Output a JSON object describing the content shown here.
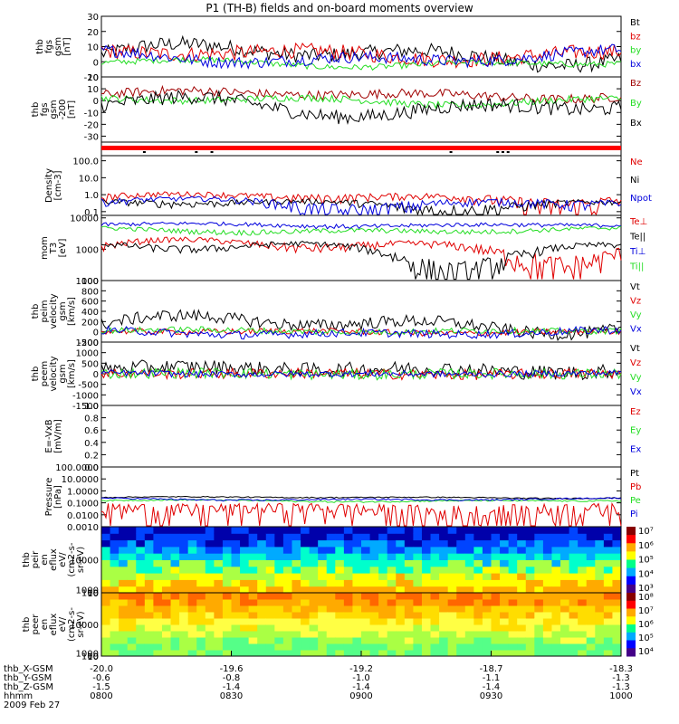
{
  "title": "P1 (TH-B) fields and on-board moments overview",
  "colors": {
    "black": "#000000",
    "red": "#e00000",
    "darkred": "#a00000",
    "green": "#22dd22",
    "blue": "#0000dd",
    "frame": "#000000"
  },
  "ephemeris": {
    "rows": [
      {
        "label": "thb_X-GSM",
        "values": [
          "-20.0",
          "-19.6",
          "-19.2",
          "-18.7",
          "-18.3"
        ]
      },
      {
        "label": "thb_Y-GSM",
        "values": [
          "-0.6",
          "-0.8",
          "-1.0",
          "-1.1",
          "-1.3"
        ]
      },
      {
        "label": "thb_Z-GSM",
        "values": [
          "-1.5",
          "-1.4",
          "-1.4",
          "-1.4",
          "-1.3"
        ]
      },
      {
        "label": "hhmm",
        "values": [
          "0800",
          "0830",
          "0900",
          "0930",
          "1000"
        ]
      }
    ],
    "date": "2009 Feb 27"
  },
  "chart_data": [
    {
      "type": "line",
      "ylabel": [
        "thb",
        "fgs",
        "gsm",
        "[nT]"
      ],
      "ylim": [
        -10,
        30
      ],
      "ticks": [
        -10,
        0,
        10,
        20,
        30
      ],
      "tick_labels": [
        "-10",
        "0",
        "10",
        "20",
        "30"
      ],
      "series": [
        {
          "name": "Bt",
          "color": "black",
          "base": 5,
          "amp": 8,
          "noise": 5
        },
        {
          "name": "bz",
          "color": "red",
          "base": 5,
          "amp": 4,
          "noise": 5
        },
        {
          "name": "by",
          "color": "green",
          "base": -1,
          "amp": 3,
          "noise": 2
        },
        {
          "name": "bx",
          "color": "blue",
          "base": 3,
          "amp": 5,
          "noise": 4
        }
      ]
    },
    {
      "type": "line",
      "ylabel": [
        "thb",
        "fgs",
        "gsm",
        "-200",
        "[nT]"
      ],
      "ylim": [
        -35,
        20
      ],
      "ticks": [
        -30,
        -20,
        -10,
        0,
        10,
        20
      ],
      "tick_labels": [
        "-30",
        "-20",
        "-10",
        "0",
        "10",
        "20"
      ],
      "series": [
        {
          "name": "Bz",
          "color": "darkred",
          "base": 5,
          "amp": 4,
          "noise": 4
        },
        {
          "name": "By",
          "color": "green",
          "base": 0,
          "amp": 4,
          "noise": 3
        },
        {
          "name": "Bx",
          "color": "black",
          "base": -5,
          "amp": 10,
          "noise": 6
        }
      ]
    },
    {
      "type": "flags",
      "ylabel": []
    },
    {
      "type": "line",
      "log": true,
      "ylabel": [
        "Density",
        "[cm-3]"
      ],
      "ylim": [
        0.06,
        200
      ],
      "ticks": [
        0.1,
        1,
        10,
        100
      ],
      "tick_labels": [
        "0.1",
        "1.0",
        "10.0",
        "100.0"
      ],
      "series": [
        {
          "name": "Ne",
          "color": "red",
          "base": 0.7,
          "amp": 0.5,
          "noise": 0.4
        },
        {
          "name": "Ni",
          "color": "black",
          "base": 0.3,
          "amp": 0.2,
          "noise": 0.15
        },
        {
          "name": "Npot",
          "color": "blue",
          "base": 0.35,
          "amp": 0.3,
          "noise": 0.2
        }
      ]
    },
    {
      "type": "line",
      "log": true,
      "ylabel": [
        "mom",
        "T3",
        "[eV]"
      ],
      "ylim": [
        100,
        12000
      ],
      "ticks": [
        100,
        1000,
        10000
      ],
      "tick_labels": [
        "100",
        "1000",
        "10000"
      ],
      "series": [
        {
          "name": "Te⊥",
          "color": "red",
          "base": 1200,
          "amp": 1000,
          "noise": 400
        },
        {
          "name": "Te||",
          "color": "black",
          "base": 1000,
          "amp": 900,
          "noise": 300
        },
        {
          "name": "Ti⊥",
          "color": "blue",
          "base": 6000,
          "amp": 800,
          "noise": 900
        },
        {
          "name": "Ti||",
          "color": "green",
          "base": 4000,
          "amp": 800,
          "noise": 700
        }
      ]
    },
    {
      "type": "line",
      "ylabel": [
        "thb",
        "peim",
        "velocity",
        "gsm",
        "[km/s]"
      ],
      "ylim": [
        -200,
        1000
      ],
      "ticks": [
        -200,
        0,
        200,
        400,
        600,
        800,
        1000
      ],
      "tick_labels": [
        "-200",
        "0",
        "200",
        "400",
        "600",
        "800",
        "1000"
      ],
      "series": [
        {
          "name": "Vt",
          "color": "black",
          "base": 150,
          "amp": 200,
          "noise": 120
        },
        {
          "name": "Vz",
          "color": "red",
          "base": 0,
          "amp": 30,
          "noise": 60
        },
        {
          "name": "Vy",
          "color": "green",
          "base": 20,
          "amp": 30,
          "noise": 60
        },
        {
          "name": "Vx",
          "color": "blue",
          "base": -20,
          "amp": 60,
          "noise": 80
        }
      ]
    },
    {
      "type": "line",
      "ylabel": [
        "thb",
        "peem",
        "velocity",
        "gsm",
        "[km/s]"
      ],
      "ylim": [
        -1500,
        1500
      ],
      "ticks": [
        -1500,
        -1000,
        -500,
        0,
        500,
        1000,
        1500
      ],
      "tick_labels": [
        "-1500",
        "-1000",
        "-500",
        "0",
        "500",
        "1000",
        "1500"
      ],
      "series": [
        {
          "name": "Vt",
          "color": "black",
          "base": 200,
          "amp": 150,
          "noise": 350
        },
        {
          "name": "Vz",
          "color": "red",
          "base": 0,
          "amp": 50,
          "noise": 250
        },
        {
          "name": "Vy",
          "color": "green",
          "base": 0,
          "amp": 50,
          "noise": 250
        },
        {
          "name": "Vx",
          "color": "blue",
          "base": 0,
          "amp": 40,
          "noise": 150
        }
      ]
    },
    {
      "type": "line",
      "ylabel": [
        "E=-VxB",
        "[mV/m]"
      ],
      "ylim": [
        0,
        1
      ],
      "ticks": [
        0,
        0.2,
        0.4,
        0.6,
        0.8,
        1
      ],
      "tick_labels": [
        "0.0",
        "0.2",
        "0.4",
        "0.6",
        "0.8",
        "1.0"
      ],
      "series": [
        {
          "name": "Ez",
          "color": "red",
          "empty": true
        },
        {
          "name": "Ey",
          "color": "green",
          "empty": true
        },
        {
          "name": "Ex",
          "color": "blue",
          "empty": true
        }
      ]
    },
    {
      "type": "line",
      "log": true,
      "ylabel": [
        "Pressure",
        "[nPa]"
      ],
      "ylim": [
        0.001,
        100
      ],
      "ticks": [
        0.001,
        0.01,
        0.1,
        1,
        10,
        100
      ],
      "tick_labels": [
        "0.0010",
        "0.0100",
        "0.1000",
        "1.0000",
        "10.0000",
        "100.0000"
      ],
      "series": [
        {
          "name": "Pt",
          "color": "black",
          "base": 0.28,
          "amp": 0.05,
          "noise": 0.03
        },
        {
          "name": "Pb",
          "color": "red",
          "base": 0.03,
          "amp": 0.02,
          "noise": 0.05
        },
        {
          "name": "Pe",
          "color": "green",
          "base": 0.15,
          "amp": 0.03,
          "noise": 0.02
        },
        {
          "name": "Pi",
          "color": "blue",
          "base": 0.2,
          "amp": 0.05,
          "noise": 0.03
        }
      ]
    },
    {
      "type": "heatmap",
      "ylabel": [
        "thb",
        "peir",
        "en",
        "eflux",
        "eV/",
        "(cm2-s-",
        "sr-eV)"
      ],
      "ylim": [
        8,
        20000
      ],
      "ticks": [
        10,
        100,
        1000,
        10000
      ],
      "tick_labels": [
        "10",
        "100",
        "1000",
        "10000"
      ],
      "colorbar": {
        "ticks": [
          "10³",
          "10⁴",
          "10⁵",
          "10⁶",
          "10⁷"
        ]
      }
    },
    {
      "type": "heatmap",
      "ylabel": [
        "thb",
        "peer",
        "en",
        "eflux",
        "eV/",
        "(cm2-s-",
        "sr-eV)"
      ],
      "ylim": [
        8,
        20000
      ],
      "ticks": [
        10,
        100,
        1000,
        10000
      ],
      "tick_labels": [
        "10",
        "100",
        "1000",
        "10000"
      ],
      "colorbar": {
        "ticks": [
          "10⁴",
          "10⁵",
          "10⁶",
          "10⁷",
          "10⁸"
        ]
      }
    }
  ]
}
